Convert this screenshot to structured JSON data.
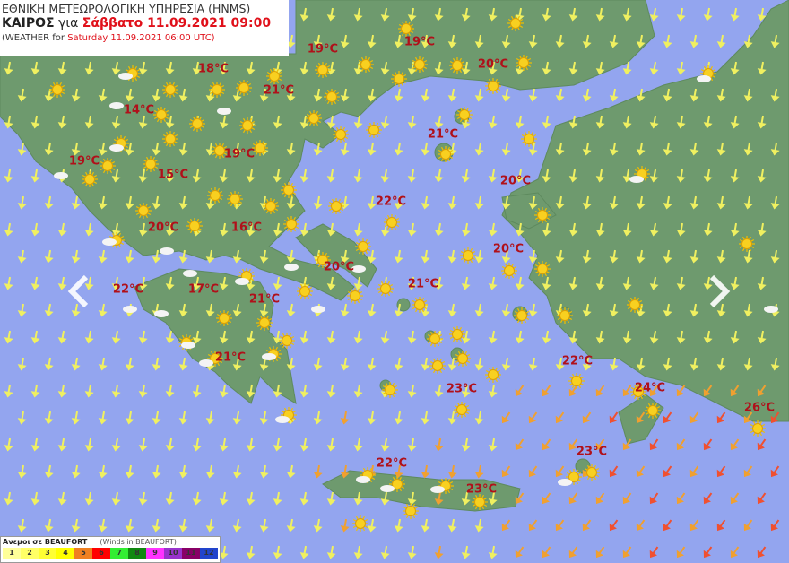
{
  "header": {
    "agency": "ΕΘΝΙΚΗ ΜΕΤΕΩΡΟΛΟΓΙΚΗ ΥΠΗΡΕΣΙΑ (HNMS)",
    "weather_label": "ΚΑΙΡΟΣ",
    "for_label": "για",
    "local_datetime": "Σάββατο 11.09.2021 09:00",
    "en_prefix": "(WEATHER for",
    "utc_datetime": "Saturday 11.09.2021 06:00 UTC)"
  },
  "temperatures": [
    "18°C",
    "19°C",
    "19°C",
    "20°C",
    "21°C",
    "14°C",
    "21°C",
    "19°C",
    "19°C",
    "15°C",
    "20°C",
    "22°C",
    "20°C",
    "16°C",
    "20°C",
    "20°C",
    "22°C",
    "17°C",
    "21°C",
    "21°C",
    "22°C",
    "21°C",
    "23°C",
    "24°C",
    "26°C",
    "23°C",
    "22°C",
    "23°C"
  ],
  "legend": {
    "title": "Ανεμοι σε BEAUFORT",
    "subtitle": "(Winds in BEAUFORT)",
    "levels": [
      {
        "n": "1",
        "color": "#ffff99"
      },
      {
        "n": "2",
        "color": "#ffff66"
      },
      {
        "n": "3",
        "color": "#ffff33"
      },
      {
        "n": "4",
        "color": "#ffff00"
      },
      {
        "n": "5",
        "color": "#f08020"
      },
      {
        "n": "6",
        "color": "#ff0000"
      },
      {
        "n": "7",
        "color": "#33ee33"
      },
      {
        "n": "8",
        "color": "#118811"
      },
      {
        "n": "9",
        "color": "#ff33ff"
      },
      {
        "n": "10",
        "color": "#9933cc"
      },
      {
        "n": "11",
        "color": "#880066"
      },
      {
        "n": "12",
        "color": "#2244cc"
      }
    ]
  },
  "colors": {
    "sea": "#93a5ef",
    "land": "#6e9a6e",
    "temp_text": "#b0101a",
    "wind_light": "#f0f060",
    "wind_moderate": "#f0a030",
    "wind_strong": "#f05030"
  },
  "icons": {
    "weather": "sun-icon",
    "cloud": "partly-cloudy-icon",
    "prev": "chevron-left-icon",
    "next": "chevron-right-icon"
  }
}
